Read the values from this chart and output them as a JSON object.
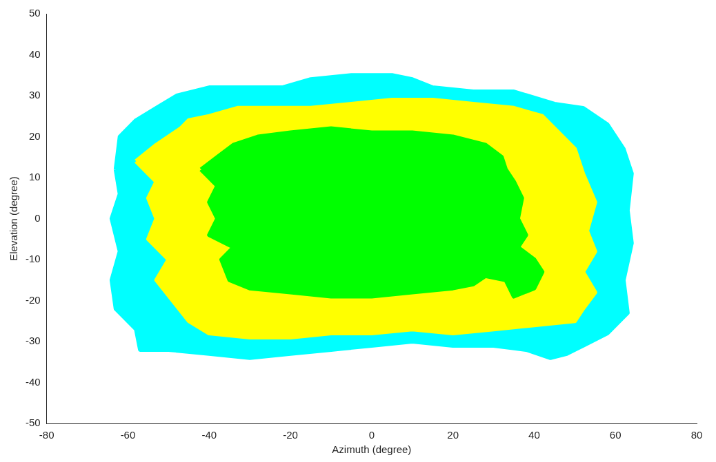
{
  "chart_data": {
    "type": "area",
    "xlabel": "Azimuth (degree)",
    "ylabel": "Elevation (degree)",
    "xlim": [
      -80,
      80
    ],
    "xticks": [
      -80,
      -60,
      -40,
      -20,
      0,
      20,
      40,
      60,
      80
    ],
    "ylim": [
      -50,
      50
    ],
    "yticks": [
      -50,
      -40,
      -30,
      -20,
      -10,
      0,
      10,
      20,
      30,
      40,
      50
    ],
    "grid": false,
    "legend": false,
    "series": [
      {
        "color": "#00ffff",
        "x": [
          -63,
          -62,
          -58,
          -53,
          -48,
          -40,
          -30,
          -22,
          -15,
          -5,
          5,
          10,
          15,
          25,
          35,
          45,
          52,
          58,
          62,
          64,
          63,
          64,
          62,
          63,
          58,
          52,
          48,
          44,
          38,
          30,
          20,
          10,
          0,
          -10,
          -20,
          -30,
          -40,
          -50,
          -57,
          -58,
          -63,
          -64,
          -62,
          -64,
          -62,
          -63
        ],
        "values": [
          12,
          20,
          24,
          27,
          30,
          32,
          32,
          32,
          34,
          35,
          35,
          34,
          32,
          31,
          31,
          28,
          27,
          23,
          17,
          11,
          2,
          -6,
          -15,
          -23,
          -28,
          -31,
          -33,
          -34,
          -32,
          -31,
          -31,
          -30,
          -31,
          -32,
          -33,
          -34,
          -33,
          -32,
          -32,
          -27,
          -22,
          -15,
          -8,
          0,
          6,
          12
        ]
      },
      {
        "color": "#ffff00",
        "x": [
          -58,
          -53,
          -47,
          -45,
          -40,
          -33,
          -25,
          -15,
          -5,
          5,
          15,
          25,
          35,
          42,
          46,
          50,
          52,
          55,
          53,
          55,
          52,
          55,
          52,
          50,
          40,
          30,
          20,
          10,
          0,
          -10,
          -20,
          -30,
          -40,
          -45,
          -49,
          -53,
          -50,
          -55,
          -53,
          -55,
          -53,
          -58
        ],
        "values": [
          14,
          18,
          22,
          24,
          25,
          27,
          27,
          27,
          28,
          29,
          29,
          28,
          27,
          25,
          21,
          17,
          11,
          4,
          -3,
          -8,
          -13,
          -18,
          -22,
          -25,
          -26,
          -27,
          -28,
          -27,
          -28,
          -28,
          -29,
          -29,
          -28,
          -25,
          -20,
          -15,
          -10,
          -5,
          0,
          5,
          9,
          14
        ]
      },
      {
        "color": "#00ff00",
        "x": [
          -42,
          -38,
          -34,
          -28,
          -20,
          -10,
          0,
          10,
          20,
          28,
          32,
          33,
          35,
          37,
          36,
          38,
          36,
          40,
          42,
          40,
          35,
          33,
          28,
          25,
          20,
          10,
          0,
          -10,
          -20,
          -30,
          -35,
          -37,
          -34,
          -40,
          -38,
          -40,
          -38,
          -42
        ],
        "values": [
          12,
          15,
          18,
          20,
          21,
          22,
          21,
          21,
          20,
          18,
          15,
          12,
          9,
          5,
          0,
          -4,
          -7,
          -10,
          -13,
          -17,
          -19,
          -15,
          -14,
          -16,
          -17,
          -18,
          -19,
          -19,
          -18,
          -17,
          -15,
          -10,
          -7,
          -4,
          0,
          4,
          8,
          12
        ]
      }
    ]
  }
}
